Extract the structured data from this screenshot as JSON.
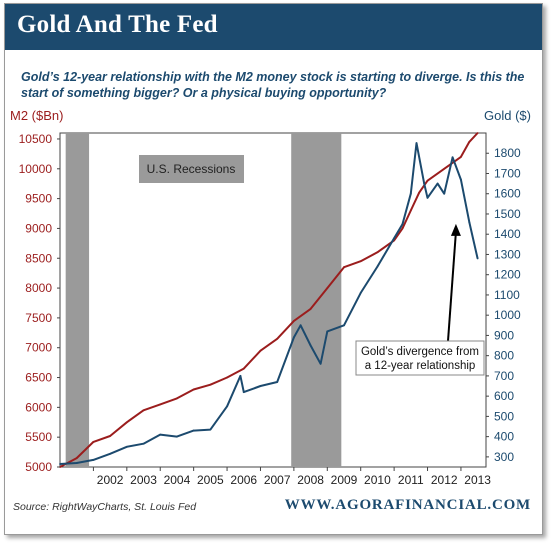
{
  "header": {
    "title": "Gold And The Fed",
    "subtitle": "Gold’s 12-year relationship with the M2 money stock is starting to diverge. Is this the start of something bigger? Or a physical buying opportunity?"
  },
  "footer": {
    "source": "Source: RightWayCharts, St. Louis Fed",
    "site": "WWW.AGORAFINANCIAL.COM"
  },
  "colors": {
    "brand": "#1c4a6e",
    "m2": "#9b1d1d",
    "gold": "#1c4a6e",
    "recession": "#9a9a9a"
  },
  "chart_data": {
    "type": "line",
    "ylabel_left": "M2 ($Bn)",
    "ylabel_right": "Gold ($)",
    "ylim_left": [
      5000,
      10600
    ],
    "ylim_right": [
      250,
      1900
    ],
    "xlim": [
      2001.0,
      2013.75
    ],
    "x_ticks": [
      "2002",
      "2003",
      "2004",
      "2005",
      "2006",
      "2007",
      "2008",
      "2009",
      "2010",
      "2011",
      "2012",
      "2013"
    ],
    "y_ticks_left": [
      5000,
      5500,
      6000,
      6500,
      7000,
      7500,
      8000,
      8500,
      9000,
      9500,
      10000,
      10500
    ],
    "y_ticks_right": [
      300,
      400,
      500,
      600,
      700,
      800,
      900,
      1000,
      1100,
      1200,
      1300,
      1400,
      1500,
      1600,
      1700,
      1800
    ],
    "grid": false,
    "recession_label": "U.S. Recessions",
    "recessions": [
      [
        2001.17,
        2001.87
      ],
      [
        2007.92,
        2009.42
      ]
    ],
    "annotation": {
      "lines": [
        "Gold’s divergence from",
        "a 12-year relationship"
      ],
      "points_to_x": 2012.85,
      "points_to_y_right": 1560
    },
    "series": [
      {
        "axis": "left",
        "x": [
          2001.0,
          2001.5,
          2002.0,
          2002.5,
          2003.0,
          2003.5,
          2004.0,
          2004.5,
          2005.0,
          2005.5,
          2006.0,
          2006.5,
          2007.0,
          2007.5,
          2008.0,
          2008.5,
          2009.0,
          2009.5,
          2010.0,
          2010.5,
          2011.0,
          2011.25,
          2011.5,
          2011.75,
          2012.0,
          2012.5,
          2013.0,
          2013.25,
          2013.5
        ],
        "values": [
          5000,
          5150,
          5420,
          5520,
          5750,
          5950,
          6050,
          6150,
          6300,
          6380,
          6500,
          6650,
          6950,
          7150,
          7450,
          7650,
          8000,
          8350,
          8450,
          8600,
          8800,
          9000,
          9300,
          9600,
          9800,
          10000,
          10200,
          10450,
          10600
        ]
      },
      {
        "axis": "right",
        "x": [
          2001.0,
          2001.5,
          2002.0,
          2002.5,
          2003.0,
          2003.5,
          2004.0,
          2004.5,
          2005.0,
          2005.5,
          2006.0,
          2006.4,
          2006.5,
          2007.0,
          2007.5,
          2008.0,
          2008.2,
          2008.5,
          2008.8,
          2009.0,
          2009.5,
          2010.0,
          2010.5,
          2011.0,
          2011.25,
          2011.5,
          2011.67,
          2011.9,
          2012.0,
          2012.3,
          2012.5,
          2012.75,
          2013.0,
          2013.25,
          2013.5
        ],
        "values": [
          265,
          270,
          285,
          315,
          350,
          365,
          410,
          400,
          430,
          435,
          550,
          700,
          620,
          650,
          670,
          890,
          950,
          850,
          760,
          920,
          950,
          1110,
          1240,
          1380,
          1450,
          1600,
          1850,
          1650,
          1580,
          1650,
          1600,
          1780,
          1670,
          1460,
          1280
        ]
      }
    ]
  }
}
